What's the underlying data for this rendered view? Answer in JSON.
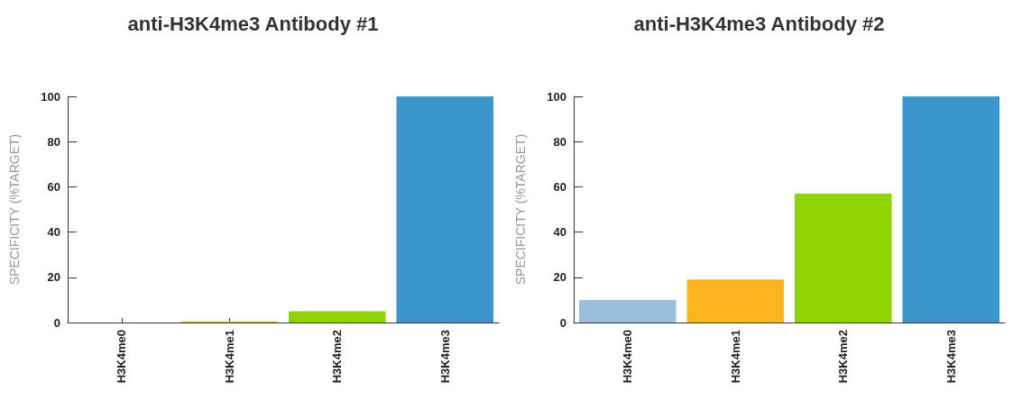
{
  "chart_data": [
    {
      "type": "bar",
      "title": "anti-H3K4me3 Antibody #1",
      "ylabel": "SPECIFICITY (%TARGET)",
      "categories": [
        "H3K4me0",
        "H3K4me1",
        "H3K4me2",
        "H3K4me3"
      ],
      "values": [
        0,
        0.5,
        5,
        100
      ],
      "colors": [
        "#9bbedd",
        "#fdb41f",
        "#8fd400",
        "#3d96cb"
      ],
      "ylim": [
        0,
        100
      ],
      "yticks": [
        0,
        20,
        40,
        60,
        80,
        100
      ],
      "grid": false
    },
    {
      "type": "bar",
      "title": "anti-H3K4me3 Antibody #2",
      "ylabel": "SPECIFICITY (%TARGET)",
      "categories": [
        "H3K4me0",
        "H3K4me1",
        "H3K4me2",
        "H3K4me3"
      ],
      "values": [
        10,
        19,
        57,
        100
      ],
      "colors": [
        "#9bbedd",
        "#fdb41f",
        "#8fd400",
        "#3d96cb"
      ],
      "ylim": [
        0,
        100
      ],
      "yticks": [
        0,
        20,
        40,
        60,
        80,
        100
      ],
      "grid": false
    }
  ]
}
